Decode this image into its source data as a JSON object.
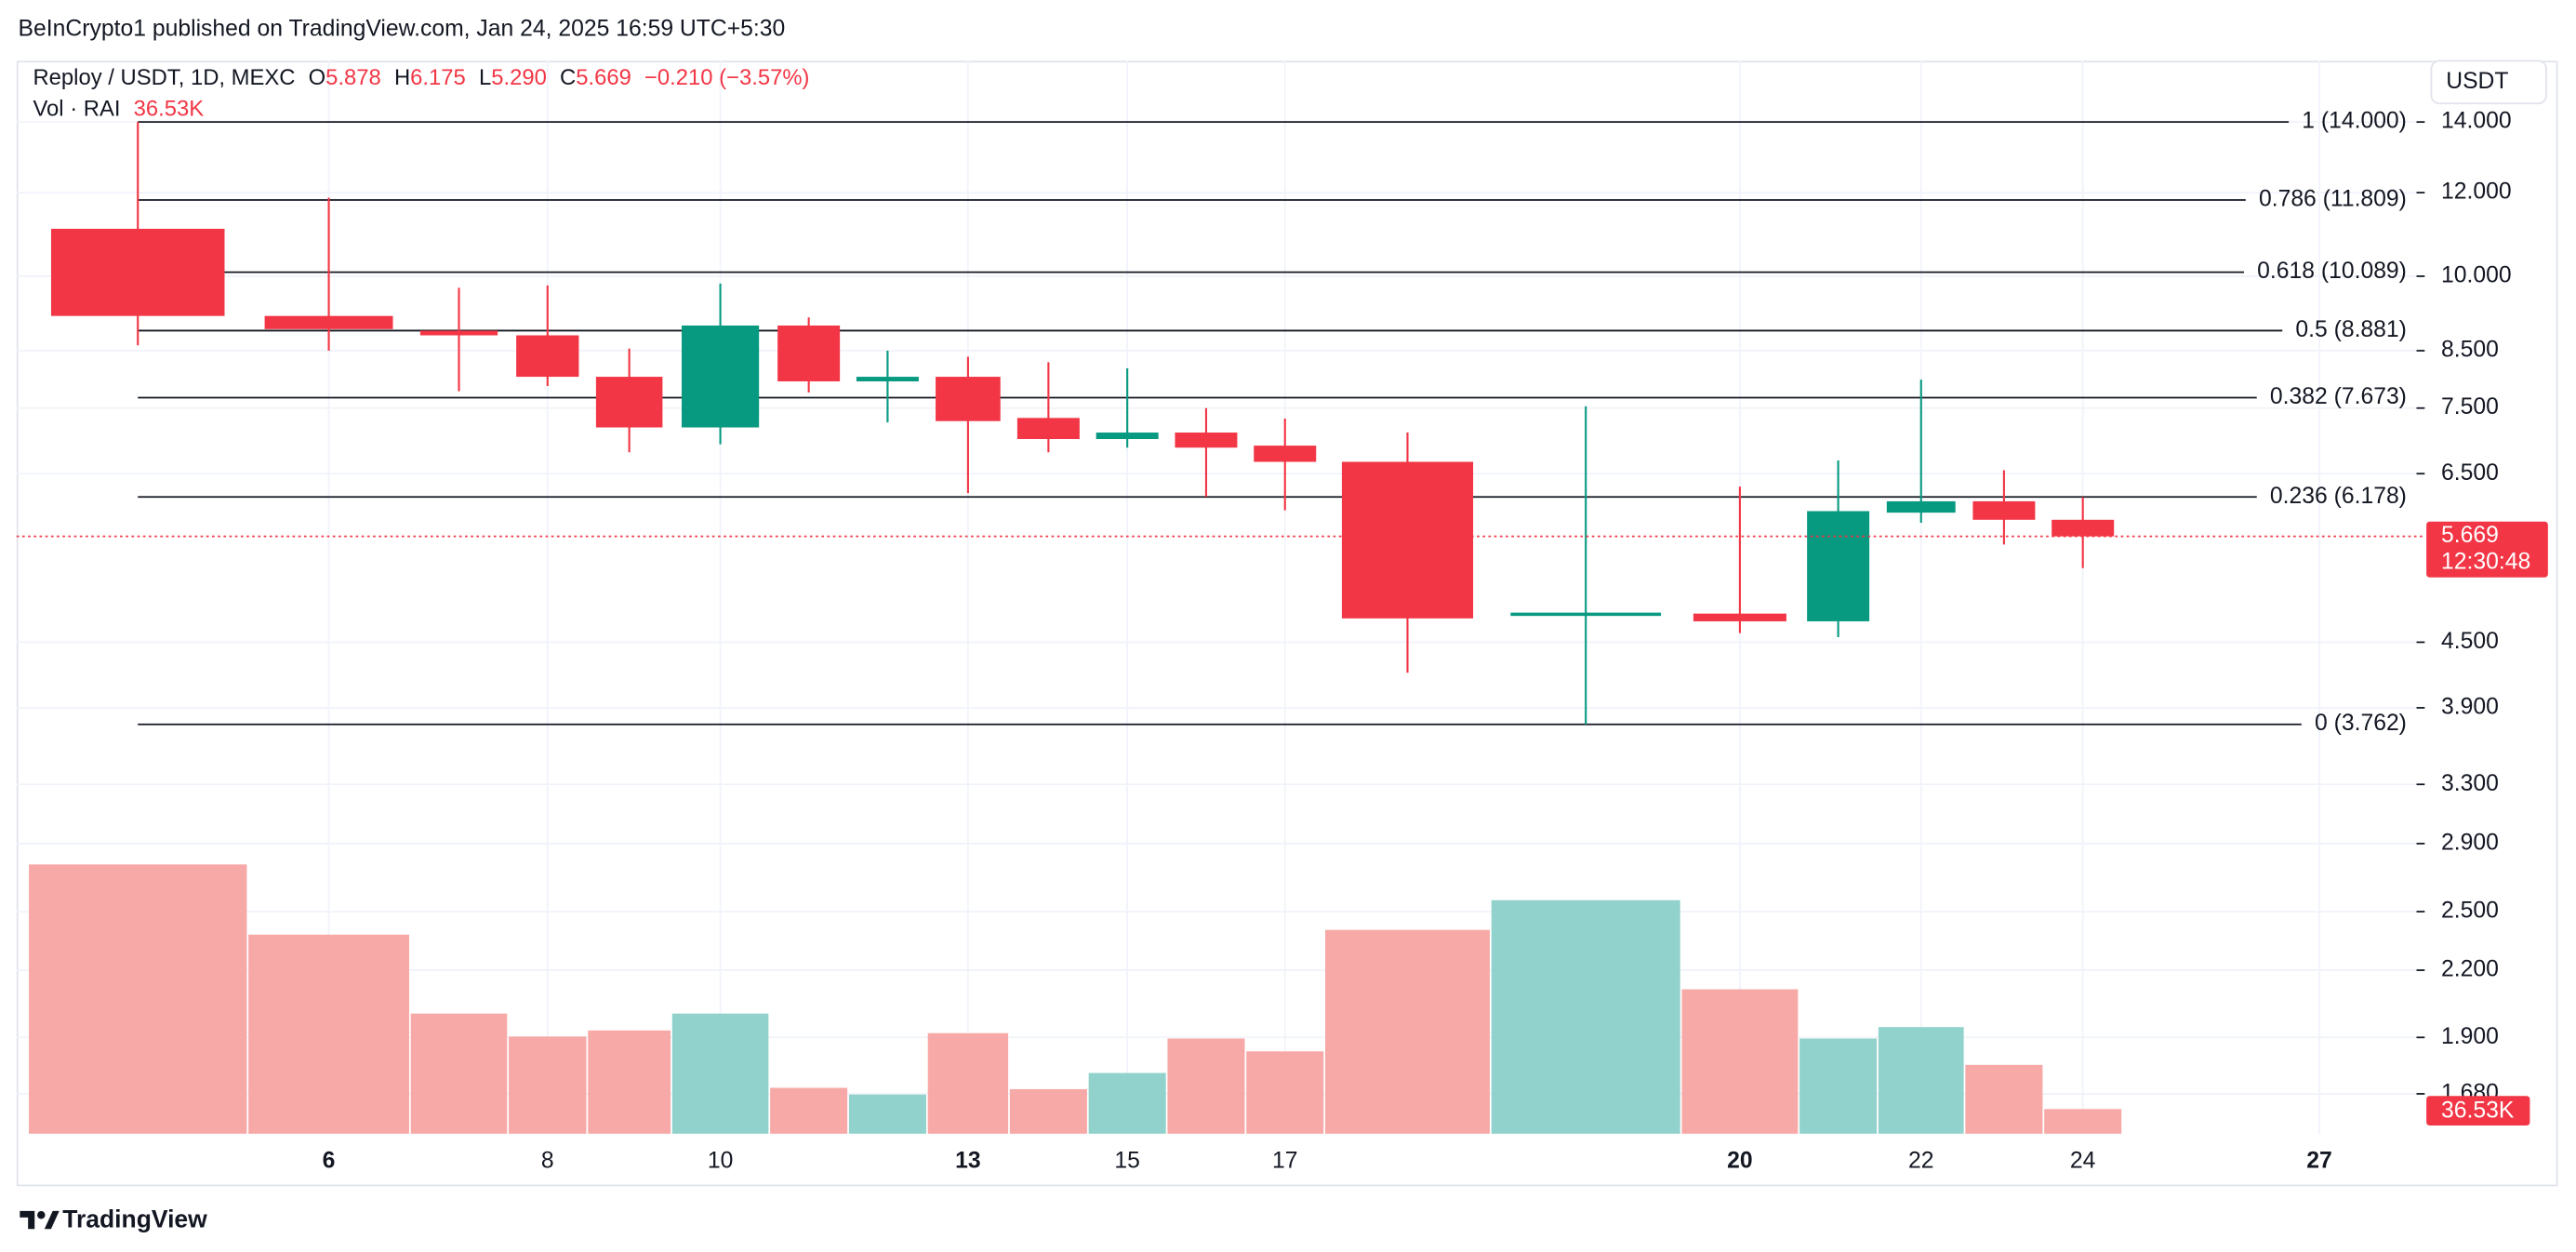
{
  "chart_data": {
    "type": "candlestick",
    "header": "BeInCrypto1 published on TradingView.com, Jan 24, 2025 16:59 UTC+5:30",
    "symbol": "Reploy / USDT, 1D, MEXC",
    "ohlc_legend": [
      {
        "key": "O",
        "text": "5.878"
      },
      {
        "key": "H",
        "text": "6.175"
      },
      {
        "key": "L",
        "text": "5.290"
      },
      {
        "key": "C",
        "text": "5.669"
      }
    ],
    "change": "−0.210 (−3.57%)",
    "currency": "USDT",
    "categories": [
      null,
      "6",
      null,
      "8",
      null,
      "10",
      null,
      null,
      "13",
      null,
      "15",
      null,
      "17",
      null,
      null,
      "20",
      null,
      "22",
      null,
      "24",
      null,
      null,
      "27"
    ],
    "open": [
      11.09,
      9.17,
      8.88,
      8.79,
      8.03,
      7.19,
      8.98,
      7.95,
      8.03,
      7.34,
      7.01,
      7.11,
      6.91,
      6.67,
      4.77,
      4.79,
      4.71,
      5.97,
      6.12,
      5.878,
      null,
      null,
      null
    ],
    "high": [
      14.0,
      11.87,
      9.75,
      9.8,
      8.54,
      9.84,
      9.14,
      8.5,
      8.39,
      8.29,
      8.18,
      7.5,
      7.33,
      7.11,
      7.53,
      6.32,
      6.69,
      7.98,
      6.55,
      6.175,
      null,
      null,
      null
    ],
    "low": [
      8.6,
      8.5,
      7.78,
      7.87,
      6.81,
      6.93,
      7.76,
      7.27,
      6.23,
      6.81,
      6.88,
      6.18,
      6.0,
      4.21,
      3.762,
      4.59,
      4.55,
      5.84,
      5.57,
      5.29,
      null,
      null,
      null
    ],
    "close": [
      9.17,
      8.91,
      8.79,
      8.03,
      7.19,
      8.98,
      7.95,
      8.03,
      7.29,
      7.01,
      7.11,
      6.88,
      6.67,
      4.74,
      4.8,
      4.71,
      5.99,
      6.12,
      5.878,
      5.669,
      null,
      null,
      null
    ],
    "up_color": "#089981",
    "down_color": "#f23645",
    "volume": {
      "name": "Vol · RAI",
      "values": [
        399000,
        295000,
        178000,
        144000,
        153000,
        178000,
        68000,
        58000,
        149000,
        66000,
        90000,
        141000,
        122000,
        302000,
        346000,
        214000,
        141000,
        158000,
        102000,
        36530,
        null,
        null,
        null
      ],
      "value_labels": [
        null,
        null,
        null,
        null,
        null,
        null,
        null,
        null,
        null,
        null,
        null,
        null,
        null,
        null,
        null,
        null,
        null,
        null,
        null,
        "36.53K",
        null,
        null,
        null
      ],
      "up_color": "#92d2cc",
      "down_color": "#f7a9a7"
    },
    "log": true,
    "ylim": [
      1.54,
      16
    ],
    "yticks": [
      {
        "value": 14,
        "label": "14.000"
      },
      {
        "value": 12,
        "label": "12.000"
      },
      {
        "value": 10,
        "label": "10.000"
      },
      {
        "value": 8.5,
        "label": "8.500"
      },
      {
        "value": 7.5,
        "label": "7.500"
      },
      {
        "value": 6.5,
        "label": "6.500"
      },
      {
        "value": 4.5,
        "label": "4.500"
      },
      {
        "value": 3.9,
        "label": "3.900"
      },
      {
        "value": 3.3,
        "label": "3.300"
      },
      {
        "value": 2.9,
        "label": "2.900"
      },
      {
        "value": 2.5,
        "label": "2.500"
      },
      {
        "value": 2.2,
        "label": "2.200"
      },
      {
        "value": 1.9,
        "label": "1.900"
      },
      {
        "value": 1.68,
        "label": "1.680"
      }
    ],
    "fib_levels": [
      {
        "value": 14,
        "label": "1 (14.000)"
      },
      {
        "value": 11.809,
        "label": "0.786 (11.809)"
      },
      {
        "value": 10.089,
        "label": "0.618 (10.089)"
      },
      {
        "value": 8.881,
        "label": "0.5 (8.881)"
      },
      {
        "value": 7.673,
        "label": "0.382 (7.673)"
      },
      {
        "value": 6.178,
        "label": "0.236 (6.178)"
      },
      {
        "value": 3.762,
        "label": "0 (3.762)"
      }
    ],
    "countdown": "12:30:48",
    "grid": true,
    "footer": "TradingView"
  }
}
